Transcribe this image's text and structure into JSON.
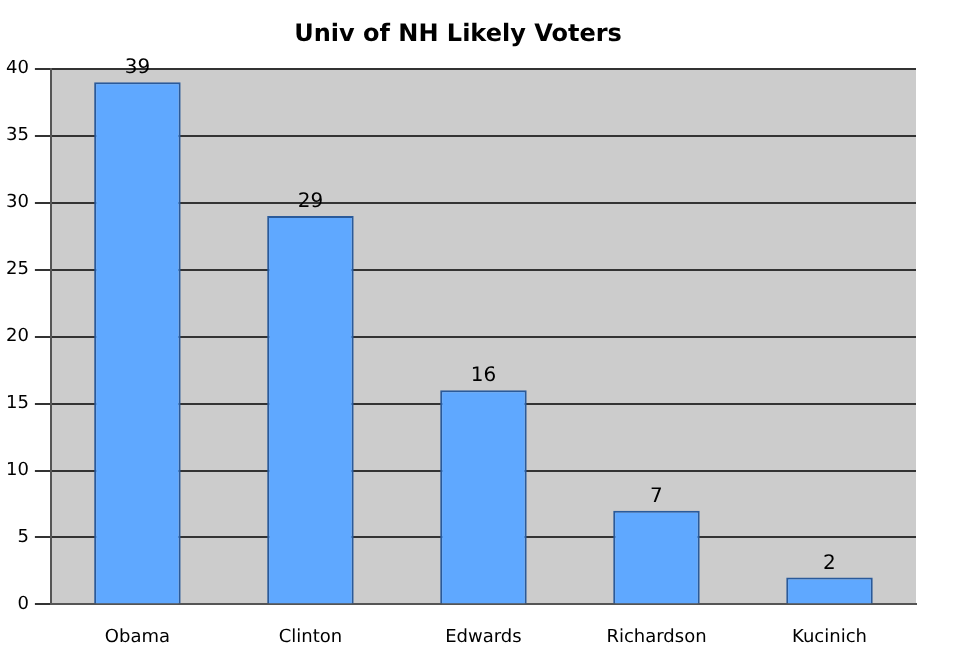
{
  "chart_data": {
    "type": "bar",
    "title": "Univ of NH Likely Voters",
    "categories": [
      "Obama",
      "Clinton",
      "Edwards",
      "Richardson",
      "Kucinich"
    ],
    "values": [
      39,
      29,
      16,
      7,
      2
    ],
    "color": "#5fa8ff",
    "ylim": [
      0,
      40
    ],
    "yticks": [
      0,
      5,
      10,
      15,
      20,
      25,
      30,
      35,
      40
    ],
    "grid": "y",
    "data_labels": true,
    "legend": false
  }
}
